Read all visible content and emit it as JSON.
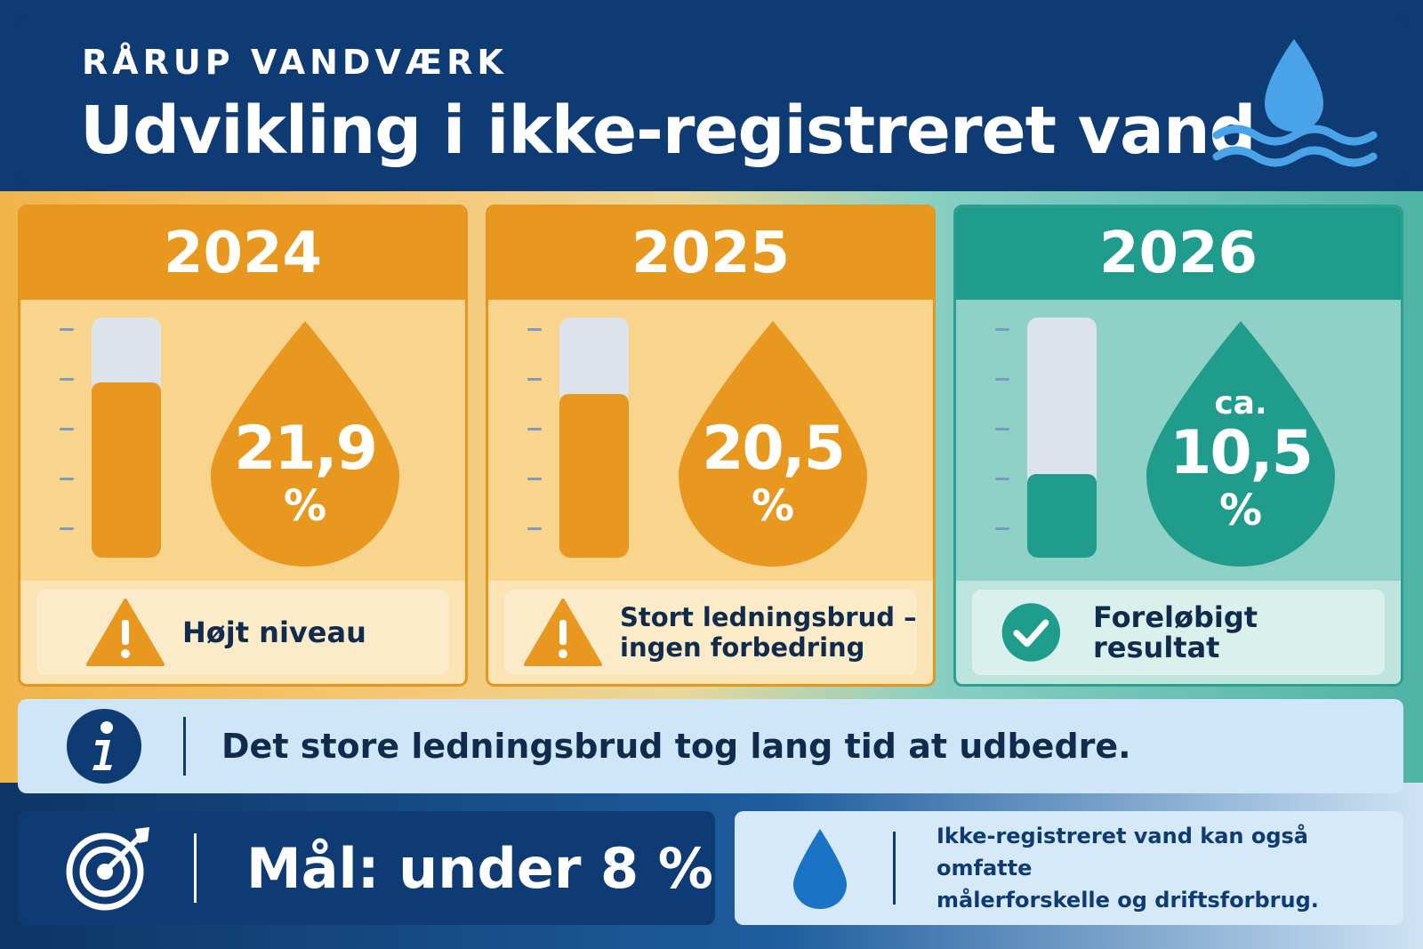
{
  "header": {
    "supertitle": "RÅRUP VANDVÆRK",
    "title": "Udvikling i ikke-registreret vand",
    "icon": "water-drop-waves-icon"
  },
  "cards": [
    {
      "year": "2024",
      "prefix": "",
      "value": "21,9",
      "unit": "%",
      "level_percent": 21.9,
      "status_icon": "warning-icon",
      "status_lines": [
        "Højt niveau"
      ],
      "color": "#e8981f"
    },
    {
      "year": "2025",
      "prefix": "",
      "value": "20,5",
      "unit": "%",
      "level_percent": 20.5,
      "status_icon": "warning-icon",
      "status_lines": [
        "Stort ledningsbrud –",
        "ingen forbedring"
      ],
      "color": "#e8981f"
    },
    {
      "year": "2026",
      "prefix": "ca.",
      "value": "10,5",
      "unit": "%",
      "level_percent": 10.5,
      "status_icon": "checkmark-icon",
      "status_lines": [
        "Foreløbigt resultat"
      ],
      "color": "#1f9c8c"
    }
  ],
  "info": {
    "icon": "info-icon",
    "text": "Det store ledningsbrud tog lang tid at udbedre."
  },
  "goal": {
    "icon": "target-icon",
    "text": "Mål: under 8 %"
  },
  "note": {
    "icon": "water-drop-icon",
    "lines": [
      "Ikke-registreret vand kan også omfatte",
      "målerforskelle og driftsforbrug."
    ]
  },
  "colors": {
    "navy": "#0e3b73",
    "orange": "#e8981f",
    "teal": "#1f9c8c",
    "light_blue": "#cfe6f8"
  }
}
